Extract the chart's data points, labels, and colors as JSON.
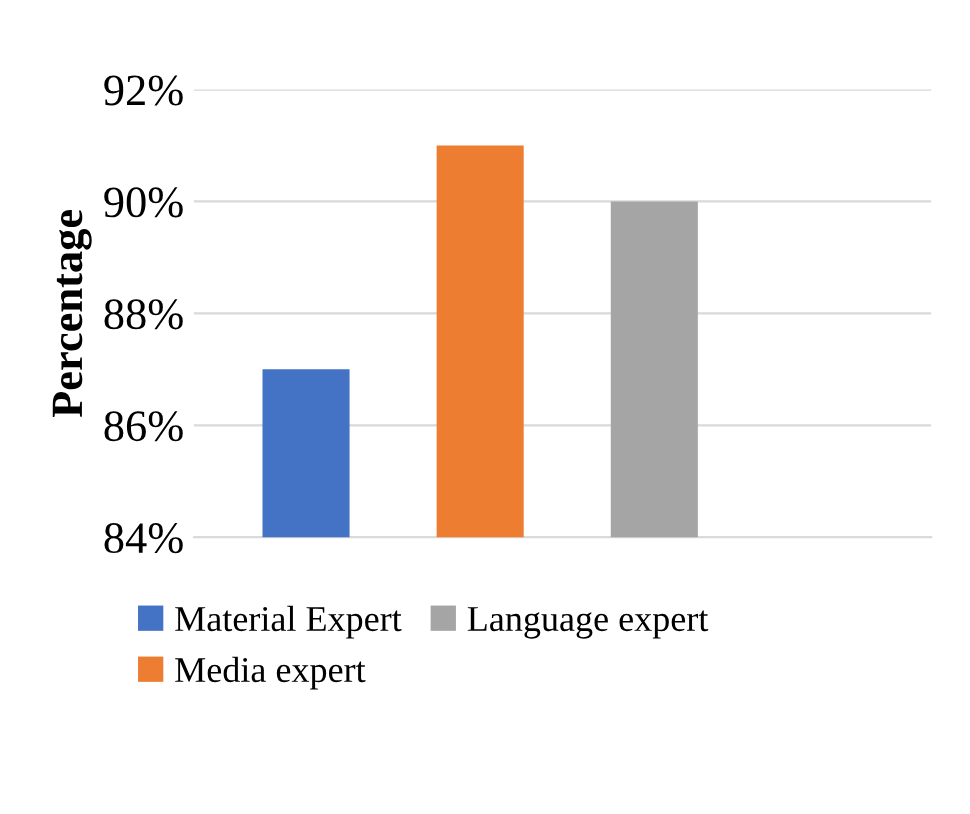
{
  "chart_data": {
    "type": "bar",
    "ylabel": "Percentage",
    "categories": [
      null
    ],
    "series": [
      {
        "name": "Material Expert",
        "color": "#4472c4",
        "values": [
          87
        ]
      },
      {
        "name": "Media expert",
        "color": "#ed7d31",
        "values": [
          91
        ]
      },
      {
        "name": "Language expert",
        "color": "#a5a5a5",
        "values": [
          90
        ]
      }
    ],
    "ylim": [
      84,
      92
    ],
    "yticks": [
      {
        "value": 84,
        "label": "84%"
      },
      {
        "value": 86,
        "label": "86%"
      },
      {
        "value": 88,
        "label": "88%"
      },
      {
        "value": 90,
        "label": "90%"
      },
      {
        "value": 92,
        "label": "92%"
      }
    ],
    "grid": "y",
    "legend": "bottom"
  }
}
